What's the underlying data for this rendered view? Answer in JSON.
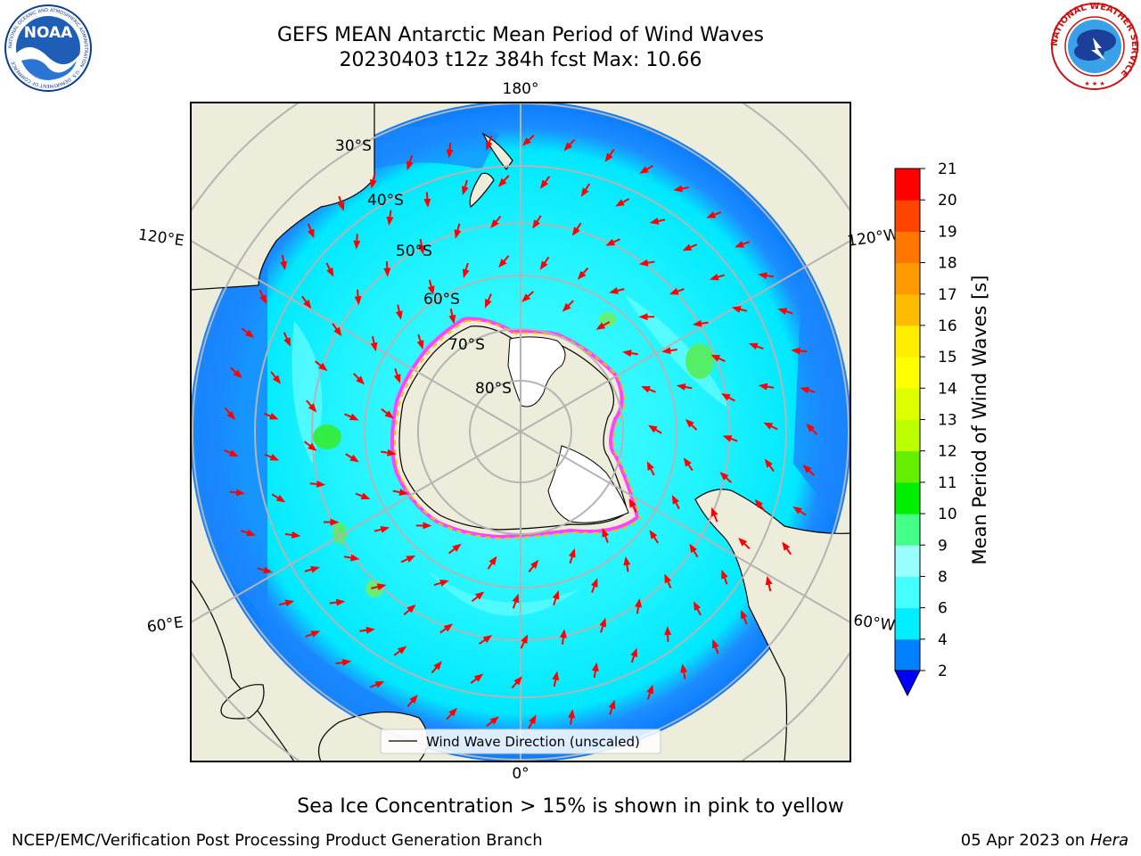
{
  "header": {
    "title": "GEFS MEAN Antarctic Mean Period of Wind Waves",
    "subtitle": "20230403 t12z 384h fcst   Max: 10.66"
  },
  "logos": {
    "noaa": {
      "text": "NOAA",
      "ring_text": "NATIONAL OCEANIC AND ATMOSPHERIC ADMINISTRATION · U.S. DEPARTMENT OF COMMERCE ·"
    },
    "nws": {
      "ring_text": "NATIONAL WEATHER SERVICE"
    }
  },
  "map": {
    "projection": "south-polar-stereographic",
    "longitude_labels": [
      "180°",
      "120°E",
      "120°W",
      "60°E",
      "60°W",
      "0°"
    ],
    "latitude_labels": [
      "30°S",
      "40°S",
      "50°S",
      "60°S",
      "70°S",
      "80°S"
    ],
    "legend_label": "Wind Wave Direction (unscaled)",
    "colors": {
      "land": "#eeecda",
      "ocean_low": "#0080ff",
      "ocean_mid": "#00eeff",
      "ocean_light": "#55ffff",
      "ice_edge_pink": "#ff44ff",
      "ice_edge_yellow": "#ffbb00",
      "arrows": "#ff0000",
      "grid": "#b4b4b4"
    }
  },
  "colorbar": {
    "label": "Mean Period of Wind Waves [s]",
    "ticks": [
      "2",
      "4",
      "6",
      "8",
      "9",
      "10",
      "11",
      "12",
      "13",
      "14",
      "15",
      "16",
      "17",
      "18",
      "19",
      "20",
      "21"
    ],
    "colors": [
      "#0080ff",
      "#00eeff",
      "#44ffff",
      "#99ffff",
      "#44ff88",
      "#00ee00",
      "#66ee00",
      "#bbff00",
      "#ddff00",
      "#ffff00",
      "#ffee00",
      "#ffbb00",
      "#ff9900",
      "#ff7700",
      "#ff4400",
      "#ff0000"
    ],
    "extend_color": "#0000ff"
  },
  "footer": {
    "note": "Sea Ice Concentration > 15% is shown in pink to yellow",
    "branch": "NCEP/EMC/Verification Post Processing Product Generation Branch",
    "date_prefix": "05 Apr 2023 on ",
    "host": "Hera"
  }
}
